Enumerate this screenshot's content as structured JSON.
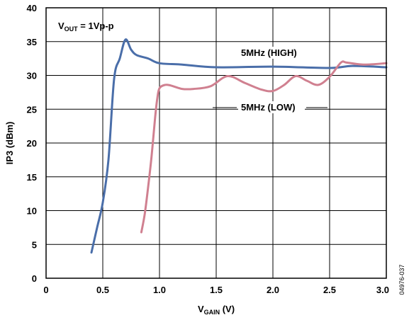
{
  "chart_data": {
    "type": "line",
    "xlabel": {
      "main": "V",
      "sub": "GAIN",
      "unit": " (V)"
    },
    "ylabel": "IP3 (dBm)",
    "xlim": [
      0,
      3.0
    ],
    "ylim": [
      0,
      40
    ],
    "x_ticks": [
      "0",
      "0.5",
      "1.0",
      "1.5",
      "2.0",
      "2.5",
      "3.0"
    ],
    "y_ticks": [
      "0",
      "5",
      "10",
      "15",
      "20",
      "25",
      "30",
      "35",
      "40"
    ],
    "grid": true,
    "annotations": {
      "vout": {
        "main": "V",
        "sub": "OUT",
        "rest": " = 1Vp-p"
      },
      "figure_id": "04976-037"
    },
    "series": [
      {
        "name": "5MHz (HIGH)",
        "color": "#4a6ea9",
        "x": [
          0.4,
          0.45,
          0.5,
          0.55,
          0.6,
          0.65,
          0.7,
          0.75,
          0.8,
          0.9,
          1.0,
          1.2,
          1.5,
          2.0,
          2.5,
          2.7,
          3.0
        ],
        "y": [
          3.8,
          7.5,
          11.2,
          17.5,
          29.5,
          32.5,
          35.3,
          33.8,
          33.0,
          32.5,
          31.8,
          31.6,
          31.2,
          31.3,
          31.1,
          31.4,
          31.2
        ]
      },
      {
        "name": "5MHz (LOW)",
        "color": "#d08090",
        "x": [
          0.84,
          0.87,
          0.9,
          0.93,
          0.96,
          0.98,
          1.0,
          1.05,
          1.1,
          1.2,
          1.3,
          1.45,
          1.6,
          1.75,
          1.9,
          2.0,
          2.1,
          2.2,
          2.3,
          2.4,
          2.5,
          2.6,
          2.65,
          2.8,
          3.0
        ],
        "y": [
          6.8,
          9.5,
          13.5,
          18.0,
          23.5,
          26.5,
          28.1,
          28.6,
          28.5,
          28.0,
          28.0,
          28.4,
          29.9,
          28.9,
          27.9,
          27.7,
          28.6,
          29.9,
          29.2,
          28.6,
          29.8,
          31.9,
          31.9,
          31.6,
          31.8
        ]
      }
    ],
    "series_labels": [
      {
        "text": "5MHz (HIGH)"
      },
      {
        "text": "5MHz (LOW)"
      }
    ]
  }
}
